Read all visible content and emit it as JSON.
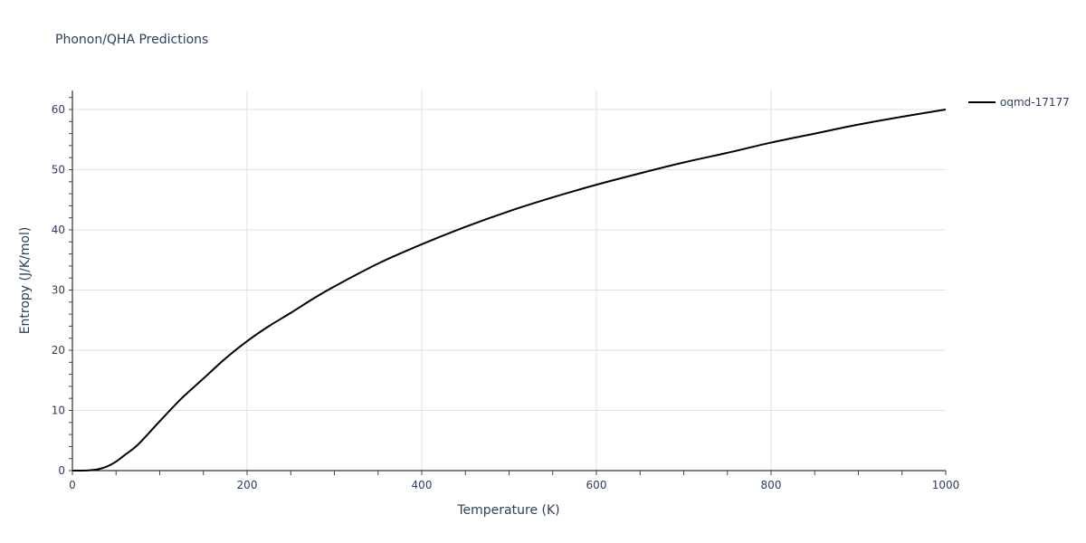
{
  "chart_data": {
    "type": "line",
    "title": "Phonon/QHA Predictions",
    "xlabel": "Temperature (K)",
    "ylabel": "Entropy (J/K/mol)",
    "xlim": [
      0,
      1000
    ],
    "ylim": [
      0,
      63
    ],
    "x_ticks": [
      0,
      200,
      400,
      600,
      800,
      1000
    ],
    "y_ticks": [
      0,
      10,
      20,
      30,
      40,
      50,
      60
    ],
    "grid": true,
    "legend_position": "right-top",
    "series": [
      {
        "name": "oqmd-17177",
        "color": "#000000",
        "x": [
          0,
          10,
          20,
          30,
          40,
          50,
          60,
          75,
          100,
          125,
          150,
          175,
          200,
          225,
          250,
          275,
          300,
          350,
          400,
          450,
          500,
          550,
          600,
          650,
          700,
          750,
          800,
          850,
          900,
          950,
          1000
        ],
        "values": [
          0,
          0.0,
          0.05,
          0.25,
          0.7,
          1.5,
          2.6,
          4.3,
          8.2,
          12.0,
          15.3,
          18.6,
          21.5,
          24.0,
          26.2,
          28.5,
          30.6,
          34.4,
          37.6,
          40.5,
          43.1,
          45.4,
          47.5,
          49.4,
          51.2,
          52.8,
          54.5,
          56.0,
          57.5,
          58.8,
          60.0
        ]
      }
    ]
  },
  "header": {
    "title": "Phonon/QHA Predictions"
  },
  "axes": {
    "x": {
      "title": "Temperature (K)",
      "tick_labels": [
        "0",
        "200",
        "400",
        "600",
        "800",
        "1000"
      ]
    },
    "y": {
      "title": "Entropy (J/K/mol)",
      "tick_labels": [
        "0",
        "10",
        "20",
        "30",
        "40",
        "50",
        "60"
      ]
    }
  },
  "legend": {
    "items": [
      {
        "label": "oqmd-17177",
        "color": "#000000"
      }
    ]
  },
  "colors": {
    "text": "#2a3f5f",
    "grid": "#e0e0e0",
    "line": "#000000"
  }
}
